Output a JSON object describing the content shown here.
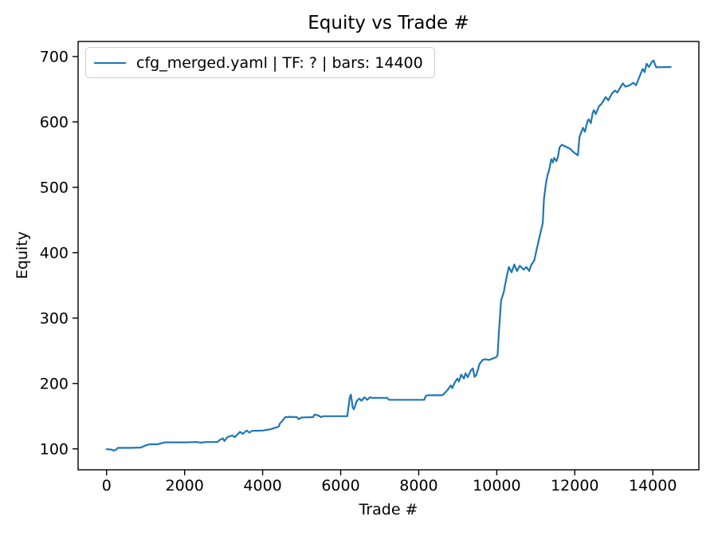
{
  "chart_data": {
    "type": "line",
    "title": "Equity vs Trade #",
    "xlabel": "Trade #",
    "ylabel": "Equity",
    "grid": false,
    "legend_position": "upper left",
    "xlim": [
      -730,
      15180
    ],
    "ylim": [
      68,
      723
    ],
    "x_ticks": [
      0,
      2000,
      4000,
      6000,
      8000,
      10000,
      12000,
      14000
    ],
    "y_ticks": [
      100,
      200,
      300,
      400,
      500,
      600,
      700
    ],
    "line_color": "#1f77b4",
    "series": [
      {
        "name": "cfg_merged.yaml | TF: ? | bars: 14400",
        "color": "#1f77b4",
        "points": [
          [
            0,
            99.5
          ],
          [
            120,
            99
          ],
          [
            180,
            97.5
          ],
          [
            230,
            98
          ],
          [
            290,
            101.5
          ],
          [
            600,
            101.5
          ],
          [
            880,
            102
          ],
          [
            950,
            104
          ],
          [
            1010,
            105.5
          ],
          [
            1100,
            107
          ],
          [
            1300,
            107
          ],
          [
            1430,
            109
          ],
          [
            1500,
            110
          ],
          [
            2000,
            110
          ],
          [
            2300,
            110.5
          ],
          [
            2430,
            109.5
          ],
          [
            2520,
            110.5
          ],
          [
            2840,
            110.5
          ],
          [
            2910,
            114
          ],
          [
            2980,
            116
          ],
          [
            3020,
            112
          ],
          [
            3100,
            118
          ],
          [
            3220,
            120.5
          ],
          [
            3290,
            118
          ],
          [
            3420,
            126
          ],
          [
            3490,
            123
          ],
          [
            3590,
            128
          ],
          [
            3660,
            125
          ],
          [
            3730,
            127.5
          ],
          [
            4000,
            128
          ],
          [
            4200,
            130
          ],
          [
            4410,
            134
          ],
          [
            4440,
            138.5
          ],
          [
            4520,
            144
          ],
          [
            4580,
            148.5
          ],
          [
            4700,
            149
          ],
          [
            4880,
            148.5
          ],
          [
            4920,
            145.5
          ],
          [
            5000,
            148
          ],
          [
            5290,
            148.5
          ],
          [
            5330,
            152.5
          ],
          [
            5430,
            151
          ],
          [
            5500,
            148.5
          ],
          [
            5550,
            150
          ],
          [
            6170,
            150
          ],
          [
            6230,
            178
          ],
          [
            6260,
            183
          ],
          [
            6310,
            163
          ],
          [
            6340,
            160.5
          ],
          [
            6410,
            173
          ],
          [
            6480,
            177
          ],
          [
            6530,
            173.5
          ],
          [
            6610,
            179
          ],
          [
            6680,
            175
          ],
          [
            6750,
            179
          ],
          [
            6800,
            178
          ],
          [
            7190,
            178
          ],
          [
            7240,
            175
          ],
          [
            8140,
            175
          ],
          [
            8180,
            181
          ],
          [
            8230,
            182
          ],
          [
            8610,
            182
          ],
          [
            8660,
            185
          ],
          [
            8750,
            191
          ],
          [
            8820,
            197
          ],
          [
            8860,
            193
          ],
          [
            8920,
            201
          ],
          [
            8990,
            207.5
          ],
          [
            9030,
            203
          ],
          [
            9090,
            213.5
          ],
          [
            9160,
            207.5
          ],
          [
            9200,
            215.5
          ],
          [
            9260,
            209.5
          ],
          [
            9330,
            219.5
          ],
          [
            9390,
            223
          ],
          [
            9430,
            210
          ],
          [
            9480,
            213.5
          ],
          [
            9560,
            230
          ],
          [
            9640,
            236
          ],
          [
            9700,
            237
          ],
          [
            9810,
            236
          ],
          [
            9910,
            238.5
          ],
          [
            9980,
            240
          ],
          [
            10020,
            243
          ],
          [
            10040,
            262
          ],
          [
            10060,
            283
          ],
          [
            10080,
            300
          ],
          [
            10110,
            327
          ],
          [
            10180,
            340
          ],
          [
            10250,
            362
          ],
          [
            10310,
            378
          ],
          [
            10380,
            370
          ],
          [
            10450,
            382
          ],
          [
            10520,
            372
          ],
          [
            10590,
            380
          ],
          [
            10690,
            374
          ],
          [
            10760,
            378
          ],
          [
            10830,
            372
          ],
          [
            10890,
            382
          ],
          [
            10960,
            388
          ],
          [
            11060,
            415
          ],
          [
            11130,
            433
          ],
          [
            11180,
            445
          ],
          [
            11210,
            482
          ],
          [
            11260,
            506
          ],
          [
            11300,
            518
          ],
          [
            11340,
            526
          ],
          [
            11400,
            543
          ],
          [
            11440,
            538
          ],
          [
            11470,
            545
          ],
          [
            11530,
            540
          ],
          [
            11570,
            547
          ],
          [
            11610,
            561
          ],
          [
            11670,
            565
          ],
          [
            11880,
            559
          ],
          [
            11980,
            553
          ],
          [
            12080,
            549
          ],
          [
            12120,
            577
          ],
          [
            12210,
            591
          ],
          [
            12260,
            585
          ],
          [
            12330,
            602
          ],
          [
            12360,
            604
          ],
          [
            12410,
            598
          ],
          [
            12460,
            614
          ],
          [
            12490,
            618
          ],
          [
            12540,
            612
          ],
          [
            12620,
            624
          ],
          [
            12690,
            628
          ],
          [
            12790,
            638
          ],
          [
            12860,
            633
          ],
          [
            12960,
            644
          ],
          [
            13030,
            648
          ],
          [
            13090,
            645
          ],
          [
            13230,
            659
          ],
          [
            13300,
            654
          ],
          [
            13410,
            656
          ],
          [
            13500,
            660
          ],
          [
            13570,
            656
          ],
          [
            13670,
            671
          ],
          [
            13740,
            681
          ],
          [
            13790,
            676
          ],
          [
            13840,
            689
          ],
          [
            13900,
            684
          ],
          [
            13980,
            692
          ],
          [
            14020,
            694
          ],
          [
            14060,
            687
          ],
          [
            14090,
            683.5
          ],
          [
            14460,
            684
          ]
        ]
      }
    ]
  }
}
